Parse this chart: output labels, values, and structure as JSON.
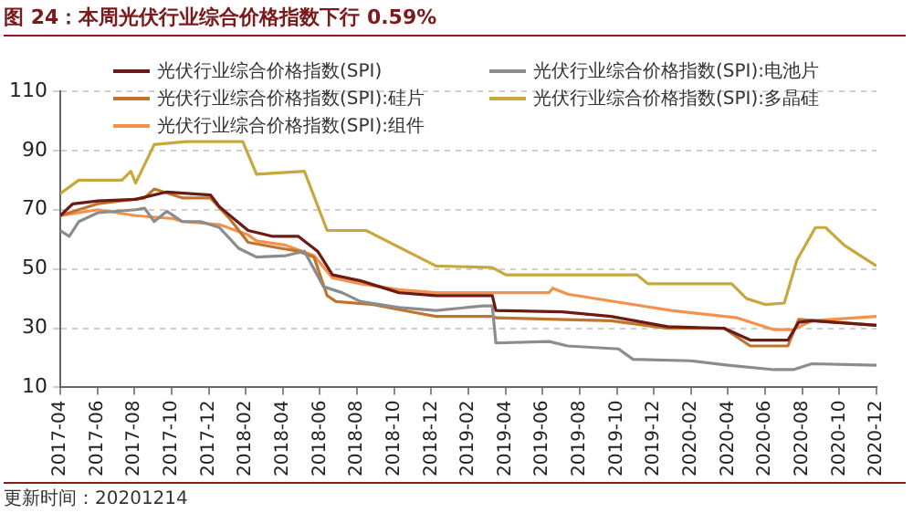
{
  "chart_data": {
    "type": "line",
    "title": "图 24：本周光伏行业综合价格指数下行 0.59%",
    "annotations": [
      "更新时间：20201214"
    ],
    "xlim": [
      "2017-04",
      "2020-12"
    ],
    "xticks": [
      "2017-04",
      "2017-06",
      "2017-08",
      "2017-10",
      "2017-12",
      "2018-02",
      "2018-04",
      "2018-06",
      "2018-08",
      "2018-10",
      "2018-12",
      "2019-02",
      "2019-04",
      "2019-06",
      "2019-08",
      "2019-10",
      "2019-12",
      "2020-02",
      "2020-04",
      "2020-06",
      "2020-08",
      "2020-10",
      "2020-12"
    ],
    "ylim": [
      10,
      110
    ],
    "yticks": [
      10,
      30,
      50,
      70,
      90,
      110
    ],
    "grid": "y",
    "legend": "top",
    "marker": "none",
    "line_style": "solid",
    "series": [
      {
        "name": "光伏行业综合价格指数(SPI)",
        "color": "#6b1a14",
        "x": [
          "2017-04-01",
          "2017-04-22",
          "2017-06-02",
          "2017-08-03",
          "2017-09-24",
          "2017-12-04",
          "2017-12-19",
          "2018-02-05",
          "2018-03-15",
          "2018-04-27",
          "2018-05-28",
          "2018-06-22",
          "2018-08-07",
          "2018-10-09",
          "2018-12-09",
          "2019-03-10",
          "2019-03-16",
          "2019-07-03",
          "2019-09-22",
          "2019-12-24",
          "2020-03-25",
          "2020-05-07",
          "2020-07-08",
          "2020-07-26",
          "2020-08-17",
          "2020-12-01"
        ],
        "values": [
          68,
          72,
          73,
          73.5,
          76,
          75,
          71,
          63,
          61,
          61,
          56,
          48,
          46,
          42,
          41,
          41,
          36,
          35.5,
          34,
          30.5,
          30,
          26,
          26,
          32,
          32.5,
          31
        ]
      },
      {
        "name": "光伏行业综合价格指数(SPI):电池片",
        "color": "#8c8c8c",
        "x": [
          "2017-04-01",
          "2017-04-16",
          "2017-05-01",
          "2017-06-02",
          "2017-08-03",
          "2017-08-18",
          "2017-09-03",
          "2017-09-24",
          "2017-10-19",
          "2017-11-19",
          "2017-12-19",
          "2018-01-20",
          "2018-02-19",
          "2018-04-06",
          "2018-05-06",
          "2018-06-07",
          "2018-07-07",
          "2018-08-07",
          "2018-10-09",
          "2018-12-09",
          "2019-02-25",
          "2019-03-10",
          "2019-03-16",
          "2019-06-12",
          "2019-07-12",
          "2019-10-04",
          "2019-10-28",
          "2020-01-31",
          "2020-04-01",
          "2020-06-16",
          "2020-07-17",
          "2020-08-17",
          "2020-12-01"
        ],
        "values": [
          63,
          61,
          66,
          69,
          70,
          70.5,
          66,
          69.5,
          66,
          66,
          64,
          57,
          54,
          54.5,
          56,
          44,
          42,
          39,
          37,
          36,
          37.5,
          37.5,
          25,
          25.5,
          24,
          23,
          19.5,
          19,
          17.5,
          16,
          16,
          18,
          17.5
        ]
      },
      {
        "name": "光伏行业综合价格指数(SPI):硅片",
        "color": "#c0752e",
        "x": [
          "2017-04-01",
          "2017-05-01",
          "2017-06-02",
          "2017-08-18",
          "2017-09-03",
          "2017-10-19",
          "2017-12-04",
          "2018-01-05",
          "2018-02-05",
          "2018-03-28",
          "2018-04-27",
          "2018-05-22",
          "2018-06-13",
          "2018-06-28",
          "2018-08-28",
          "2018-10-30",
          "2018-12-09",
          "2019-03-10",
          "2019-03-16",
          "2019-09-22",
          "2019-12-24",
          "2020-03-25",
          "2020-05-07",
          "2020-07-08",
          "2020-07-26",
          "2020-12-01"
        ],
        "values": [
          68,
          70,
          72,
          74,
          77,
          74,
          74,
          67,
          59,
          57,
          56,
          54,
          41,
          39,
          38,
          35.5,
          34,
          34,
          33.5,
          32.5,
          30,
          30,
          24,
          24,
          33,
          31
        ]
      },
      {
        "name": "光伏行业综合价格指数(SPI):多晶硅",
        "color": "#c8a83c",
        "x": [
          "2017-04-01",
          "2017-05-01",
          "2017-07-11",
          "2017-07-26",
          "2017-08-03",
          "2017-09-03",
          "2017-10-25",
          "2018-01-27",
          "2018-02-19",
          "2018-05-06",
          "2018-06-13",
          "2018-08-16",
          "2018-12-09",
          "2019-03-10",
          "2019-04-02",
          "2019-11-04",
          "2019-11-22",
          "2020-04-07",
          "2020-05-01",
          "2020-06-01",
          "2020-07-02",
          "2020-07-23",
          "2020-08-23",
          "2020-09-09",
          "2020-10-09",
          "2020-12-01"
        ],
        "values": [
          75.5,
          80,
          80,
          83,
          79,
          92,
          93,
          93,
          82,
          83,
          63,
          63,
          51,
          50.5,
          48,
          48,
          45,
          45,
          40,
          38,
          38.5,
          53,
          64,
          64,
          58,
          51
        ]
      },
      {
        "name": "光伏行业综合价格指数(SPI):组件",
        "color": "#f4914a",
        "x": [
          "2017-04-01",
          "2017-05-01",
          "2017-06-02",
          "2017-08-03",
          "2017-10-04",
          "2017-10-19",
          "2017-12-19",
          "2018-02-05",
          "2018-02-19",
          "2018-04-06",
          "2018-05-22",
          "2018-06-22",
          "2018-08-07",
          "2018-10-09",
          "2018-12-09",
          "2019-06-12",
          "2019-06-18",
          "2019-07-12",
          "2019-10-13",
          "2019-12-30",
          "2020-04-16",
          "2020-06-16",
          "2020-07-17",
          "2020-08-17",
          "2020-12-01"
        ],
        "values": [
          68,
          69,
          70,
          68,
          67,
          66,
          65,
          61.5,
          59.5,
          58,
          54.5,
          47,
          45,
          43,
          42,
          42,
          43.5,
          41.5,
          38.5,
          36,
          33.5,
          29.5,
          29.5,
          32.5,
          34
        ]
      }
    ]
  }
}
